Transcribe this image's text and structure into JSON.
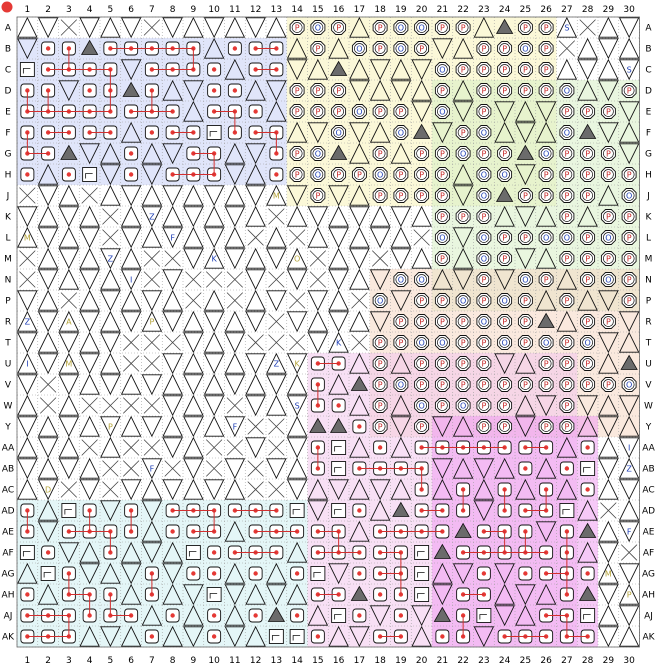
{
  "header": {
    "corner_marker_color": "#e53935",
    "columns": [
      "1",
      "2",
      "3",
      "4",
      "5",
      "6",
      "7",
      "8",
      "9",
      "10",
      "11",
      "12",
      "13",
      "14",
      "15",
      "16",
      "17",
      "18",
      "19",
      "20",
      "21",
      "22",
      "23",
      "24",
      "25",
      "26",
      "27",
      "28",
      "29",
      "30"
    ]
  },
  "rows": [
    "A",
    "B",
    "C",
    "D",
    "E",
    "F",
    "G",
    "H",
    "J",
    "K",
    "L",
    "M",
    "N",
    "P",
    "R",
    "T",
    "U",
    "V",
    "W",
    "Y",
    "AA",
    "AB",
    "AC",
    "AD",
    "AE",
    "AF",
    "AG",
    "AH",
    "AJ",
    "AK"
  ],
  "colors": {
    "grid_line": "#9e9e9e",
    "wire_red": "#d32f2f",
    "pin_red": "#e53935",
    "region_blue": "#c7cff5",
    "region_yellow": "#f7f3b8",
    "region_green": "#d7efc4",
    "region_peach": "#f6d7c3",
    "region_pink": "#f3c6ec",
    "region_cyan": "#cdeef0",
    "region_magenta": "#ef9cf0",
    "letter_blue": "#1f3fb5",
    "letter_yellow": "#b4a33a",
    "letter_red": "#c62828"
  },
  "legend_letters": [
    "P",
    "O",
    "D",
    "A",
    "I",
    "S",
    "Z",
    "F",
    "M",
    "K"
  ]
}
